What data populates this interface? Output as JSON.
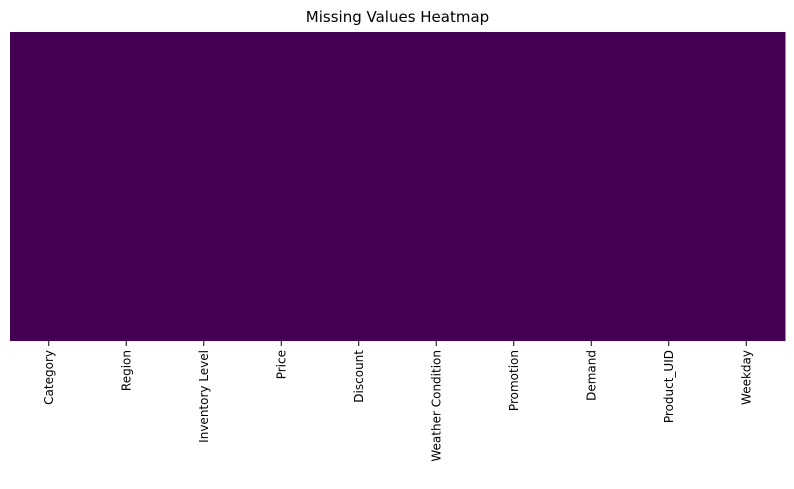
{
  "chart_data": {
    "type": "heatmap",
    "title": "Missing Values Heatmap",
    "xlabel": "",
    "ylabel": "",
    "columns": [
      "Category",
      "Region",
      "Inventory Level",
      "Price",
      "Discount",
      "Weather Condition",
      "Promotion",
      "Demand",
      "Product_UID",
      "Weekday"
    ],
    "missing_values": [
      0,
      0,
      0,
      0,
      0,
      0,
      0,
      0,
      0,
      0
    ],
    "colorbar": false,
    "y_ticks_shown": false,
    "colormap": "viridis",
    "present_color": "#440154",
    "missing_color": "#fde725"
  }
}
